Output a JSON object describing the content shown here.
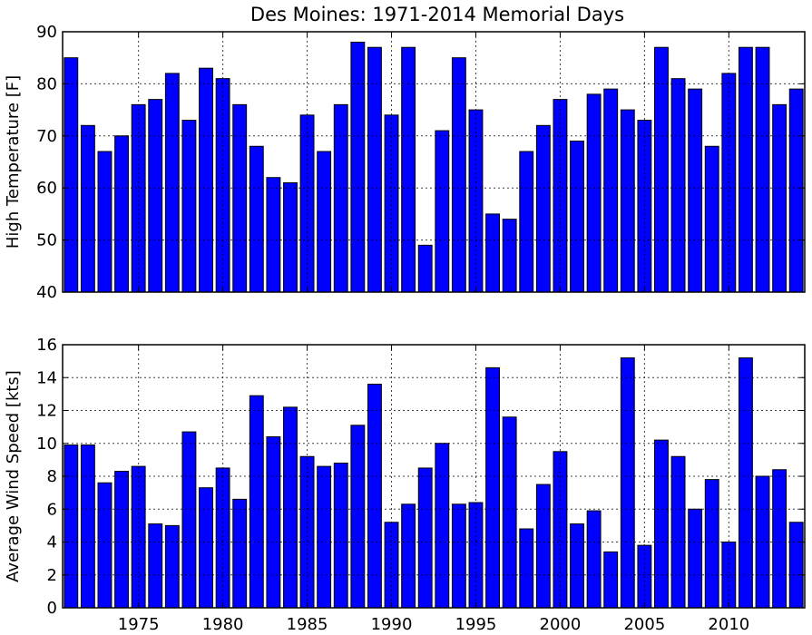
{
  "chart_data": [
    {
      "type": "bar",
      "title": "Des Moines: 1971-2014 Memorial Days",
      "ylabel": "High Temperature [F]",
      "xlabel": "",
      "xlim": [
        1970.5,
        2014.5
      ],
      "ylim": [
        40,
        90
      ],
      "yticks": [
        40,
        50,
        60,
        70,
        80,
        90
      ],
      "xticks": [
        1975,
        1980,
        1985,
        1990,
        1995,
        2000,
        2005,
        2010
      ],
      "show_xtick_labels": false,
      "grid": true,
      "bar_color": "#0000ff",
      "x": [
        1971,
        1972,
        1973,
        1974,
        1975,
        1976,
        1977,
        1978,
        1979,
        1980,
        1981,
        1982,
        1983,
        1984,
        1985,
        1986,
        1987,
        1988,
        1989,
        1990,
        1991,
        1992,
        1993,
        1994,
        1995,
        1996,
        1997,
        1998,
        1999,
        2000,
        2001,
        2002,
        2003,
        2004,
        2005,
        2006,
        2007,
        2008,
        2009,
        2010,
        2011,
        2012,
        2013,
        2014
      ],
      "values": [
        85,
        72,
        67,
        70,
        76,
        77,
        82,
        73,
        83,
        81,
        76,
        68,
        62,
        61,
        74,
        67,
        76,
        88,
        87,
        74,
        87,
        49,
        71,
        85,
        75,
        55,
        54,
        67,
        72,
        77,
        69,
        78,
        79,
        75,
        73,
        87,
        81,
        79,
        68,
        82,
        87,
        87,
        76,
        79
      ]
    },
    {
      "type": "bar",
      "title": "",
      "ylabel": "Average Wind Speed [kts]",
      "xlabel": "",
      "xlim": [
        1970.5,
        2014.5
      ],
      "ylim": [
        0,
        16
      ],
      "yticks": [
        0,
        2,
        4,
        6,
        8,
        10,
        12,
        14,
        16
      ],
      "xticks": [
        1975,
        1980,
        1985,
        1990,
        1995,
        2000,
        2005,
        2010
      ],
      "show_xtick_labels": true,
      "grid": true,
      "bar_color": "#0000ff",
      "x": [
        1971,
        1972,
        1973,
        1974,
        1975,
        1976,
        1977,
        1978,
        1979,
        1980,
        1981,
        1982,
        1983,
        1984,
        1985,
        1986,
        1987,
        1988,
        1989,
        1990,
        1991,
        1992,
        1993,
        1994,
        1995,
        1996,
        1997,
        1998,
        1999,
        2000,
        2001,
        2002,
        2003,
        2004,
        2005,
        2006,
        2007,
        2008,
        2009,
        2010,
        2011,
        2012,
        2013,
        2014
      ],
      "values": [
        9.9,
        9.9,
        7.6,
        8.3,
        8.6,
        5.1,
        5.0,
        10.7,
        7.3,
        8.5,
        6.6,
        12.9,
        10.4,
        12.2,
        9.2,
        8.6,
        8.8,
        11.1,
        13.6,
        5.2,
        6.3,
        8.5,
        10.0,
        6.3,
        6.4,
        14.6,
        11.6,
        4.8,
        7.5,
        9.5,
        5.1,
        5.9,
        3.4,
        15.2,
        3.8,
        10.2,
        9.2,
        6.0,
        7.8,
        4.0,
        15.2,
        8.0,
        8.4,
        5.2
      ]
    }
  ]
}
